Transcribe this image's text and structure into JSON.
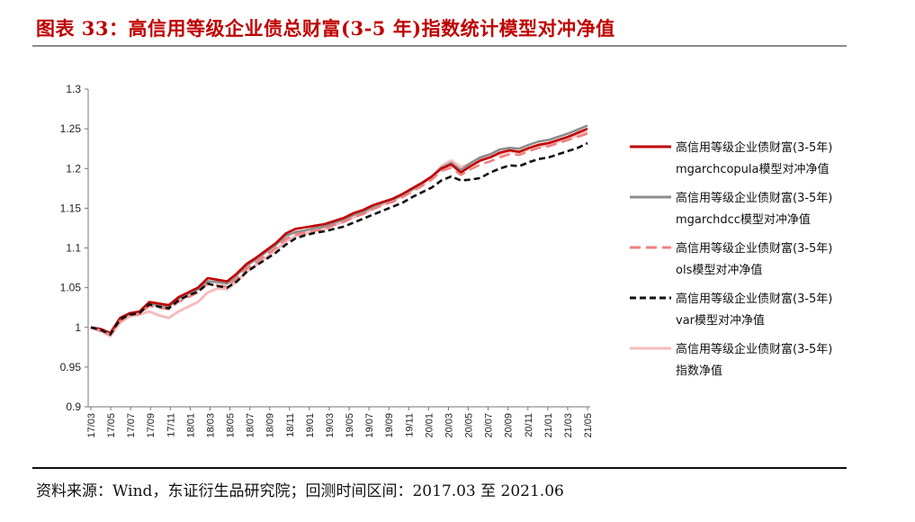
{
  "header": {
    "title": "图表 33：高信用等级企业债总财富(3-5 年)指数统计模型对冲净值"
  },
  "footer": {
    "source": "资料来源：Wind，东证衍生品研究院；回测时间区间：2017.03 至 2021.06"
  },
  "chart_data": {
    "type": "line",
    "title": "",
    "xlabel": "",
    "ylabel": "",
    "ylim": [
      0.9,
      1.3
    ],
    "yticks": [
      "0.9",
      "0.95",
      "1",
      "1.05",
      "1.1",
      "1.15",
      "1.2",
      "1.25",
      "1.3"
    ],
    "xtick_labels": [
      "17/03",
      "17/05",
      "17/07",
      "17/09",
      "17/11",
      "18/01",
      "18/03",
      "18/05",
      "18/07",
      "18/09",
      "18/11",
      "19/01",
      "19/03",
      "19/05",
      "19/07",
      "19/09",
      "19/11",
      "20/01",
      "20/03",
      "20/05",
      "20/07",
      "20/09",
      "20/11",
      "21/01",
      "21/03",
      "21/05"
    ],
    "grid": false,
    "legend_position": "right",
    "x": [
      "17/03",
      "17/04",
      "17/05",
      "17/06",
      "17/07",
      "17/08",
      "17/09",
      "17/10",
      "17/11",
      "17/12",
      "18/01",
      "18/02",
      "18/03",
      "18/04",
      "18/05",
      "18/06",
      "18/07",
      "18/08",
      "18/09",
      "18/10",
      "18/11",
      "18/12",
      "19/01",
      "19/02",
      "19/03",
      "19/04",
      "19/05",
      "19/06",
      "19/07",
      "19/08",
      "19/09",
      "19/10",
      "19/11",
      "19/12",
      "20/01",
      "20/02",
      "20/03",
      "20/04",
      "20/05",
      "20/06",
      "20/07",
      "20/08",
      "20/09",
      "20/10",
      "20/11",
      "20/12",
      "21/01",
      "21/02",
      "21/03",
      "21/04",
      "21/05",
      "21/06"
    ],
    "series": [
      {
        "name": "高信用等级企业债财富(3-5年)mgarchcopula模型对冲净值",
        "legend_lines": [
          "高信用等级企业债财富(3-5年)",
          "mgarchcopula模型对冲净值"
        ],
        "color": "#c00000",
        "dash": "none",
        "values": [
          1.0,
          0.998,
          0.993,
          1.012,
          1.018,
          1.02,
          1.032,
          1.03,
          1.028,
          1.038,
          1.044,
          1.05,
          1.062,
          1.06,
          1.058,
          1.068,
          1.08,
          1.088,
          1.097,
          1.106,
          1.118,
          1.124,
          1.126,
          1.128,
          1.13,
          1.134,
          1.138,
          1.144,
          1.148,
          1.154,
          1.158,
          1.162,
          1.168,
          1.175,
          1.182,
          1.19,
          1.2,
          1.205,
          1.195,
          1.203,
          1.21,
          1.214,
          1.22,
          1.223,
          1.221,
          1.226,
          1.23,
          1.232,
          1.236,
          1.24,
          1.245,
          1.25
        ]
      },
      {
        "name": "高信用等级企业债财富(3-5年)mgarchdcc模型对冲净值",
        "legend_lines": [
          "高信用等级企业债财富(3-5年)",
          "mgarchdcc模型对冲净值"
        ],
        "color": "#8c8c8c",
        "dash": "none",
        "values": [
          1.0,
          0.997,
          0.992,
          1.01,
          1.017,
          1.019,
          1.03,
          1.028,
          1.026,
          1.036,
          1.042,
          1.048,
          1.058,
          1.057,
          1.055,
          1.066,
          1.078,
          1.086,
          1.095,
          1.104,
          1.115,
          1.12,
          1.122,
          1.125,
          1.127,
          1.132,
          1.136,
          1.142,
          1.146,
          1.152,
          1.157,
          1.161,
          1.167,
          1.174,
          1.181,
          1.19,
          1.201,
          1.207,
          1.198,
          1.207,
          1.214,
          1.218,
          1.224,
          1.226,
          1.225,
          1.23,
          1.234,
          1.236,
          1.24,
          1.244,
          1.249,
          1.254
        ]
      },
      {
        "name": "高信用等级企业债财富(3-5年)ols模型对冲净值",
        "legend_lines": [
          "高信用等级企业债财富(3-5年)",
          "ols模型对冲净值"
        ],
        "color": "#f08080",
        "dash": "12 6",
        "values": [
          1.0,
          0.996,
          0.991,
          1.008,
          1.015,
          1.017,
          1.027,
          1.025,
          1.023,
          1.032,
          1.038,
          1.044,
          1.055,
          1.053,
          1.051,
          1.062,
          1.074,
          1.082,
          1.091,
          1.1,
          1.111,
          1.117,
          1.119,
          1.122,
          1.124,
          1.129,
          1.133,
          1.139,
          1.143,
          1.149,
          1.154,
          1.158,
          1.164,
          1.171,
          1.178,
          1.186,
          1.197,
          1.201,
          1.192,
          1.199,
          1.205,
          1.209,
          1.214,
          1.218,
          1.217,
          1.222,
          1.226,
          1.228,
          1.232,
          1.236,
          1.24,
          1.244
        ]
      },
      {
        "name": "高信用等级企业债财富(3-5年)var模型对冲净值",
        "legend_lines": [
          "高信用等级企业债财富(3-5年)",
          "var模型对冲净值"
        ],
        "color": "#111111",
        "dash": "7 4",
        "values": [
          1.0,
          0.997,
          0.991,
          1.01,
          1.016,
          1.018,
          1.029,
          1.026,
          1.024,
          1.034,
          1.04,
          1.045,
          1.055,
          1.052,
          1.05,
          1.058,
          1.07,
          1.078,
          1.086,
          1.094,
          1.104,
          1.112,
          1.116,
          1.119,
          1.121,
          1.124,
          1.127,
          1.132,
          1.137,
          1.142,
          1.147,
          1.152,
          1.157,
          1.164,
          1.17,
          1.176,
          1.185,
          1.19,
          1.185,
          1.186,
          1.188,
          1.195,
          1.2,
          1.204,
          1.203,
          1.208,
          1.212,
          1.214,
          1.218,
          1.222,
          1.226,
          1.232
        ]
      },
      {
        "name": "高信用等级企业债财富(3-5年)指数净值",
        "legend_lines": [
          "高信用等级企业债财富(3-5年)",
          "指数净值"
        ],
        "color": "#f5bcbc",
        "dash": "none",
        "values": [
          1.0,
          0.995,
          0.989,
          1.006,
          1.014,
          1.016,
          1.02,
          1.015,
          1.012,
          1.02,
          1.026,
          1.032,
          1.044,
          1.049,
          1.048,
          1.058,
          1.07,
          1.079,
          1.088,
          1.097,
          1.108,
          1.115,
          1.118,
          1.121,
          1.124,
          1.129,
          1.133,
          1.139,
          1.143,
          1.15,
          1.155,
          1.16,
          1.166,
          1.173,
          1.18,
          1.189,
          1.203,
          1.21,
          1.202,
          1.206,
          1.212,
          1.215,
          1.218,
          1.222,
          1.22,
          1.225,
          1.228,
          1.23,
          1.234,
          1.238,
          1.242,
          1.246
        ]
      }
    ]
  }
}
